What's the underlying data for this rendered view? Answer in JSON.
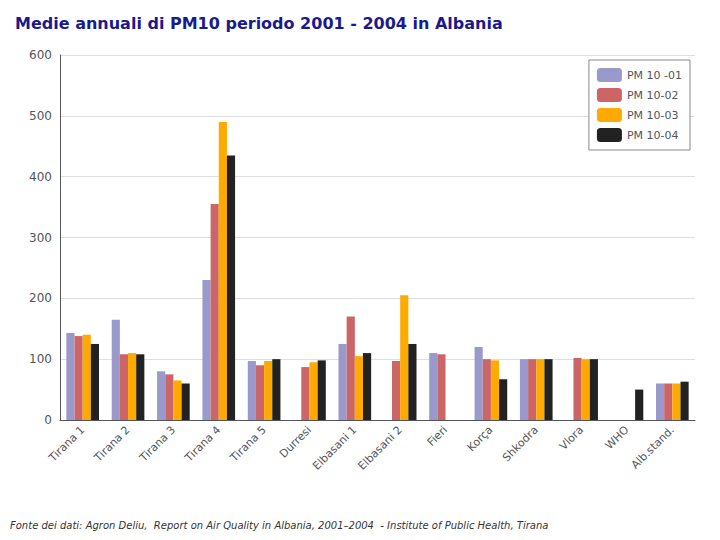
{
  "chart_data": {
    "type": "bar",
    "title": "Medie annuali di PM10 periodo 2001 - 2004 in Albania",
    "annotations": [
      "Fonte dei dati: Agron Deliu,  Report on Air Quality in Albania, 2001–2004  - Institute of Public Health, Tirana"
    ],
    "categories": [
      "Tirana 1",
      "Tirana 2",
      "Tirana 3",
      "Tirana 4",
      "Tirana 5",
      "Durresi",
      "Elbasani 1",
      "Elbasani 2",
      "Fieri",
      "Korça",
      "Shkodra",
      "Vlora",
      "WHO",
      "Alb.stand."
    ],
    "series": [
      {
        "name": "PM 10 -01",
        "color": "#9999cc",
        "values": [
          143,
          165,
          80,
          230,
          97,
          0,
          125,
          0,
          110,
          120,
          100,
          0,
          0,
          60
        ]
      },
      {
        "name": "PM 10-02",
        "color": "#cc6666",
        "values": [
          138,
          108,
          75,
          355,
          90,
          87,
          170,
          97,
          108,
          100,
          100,
          102,
          0,
          60
        ]
      },
      {
        "name": "PM 10-03",
        "color": "#ffaa00",
        "values": [
          140,
          110,
          65,
          490,
          97,
          95,
          105,
          205,
          0,
          98,
          100,
          100,
          0,
          60
        ]
      },
      {
        "name": "PM 10-04",
        "color": "#222222",
        "values": [
          125,
          108,
          60,
          435,
          100,
          98,
          110,
          125,
          0,
          67,
          100,
          100,
          50,
          63
        ]
      }
    ],
    "ylim": [
      0,
      600
    ],
    "yticks": [
      0,
      100,
      200,
      300,
      400,
      500,
      600
    ],
    "grid": true,
    "legend": "upper right"
  }
}
